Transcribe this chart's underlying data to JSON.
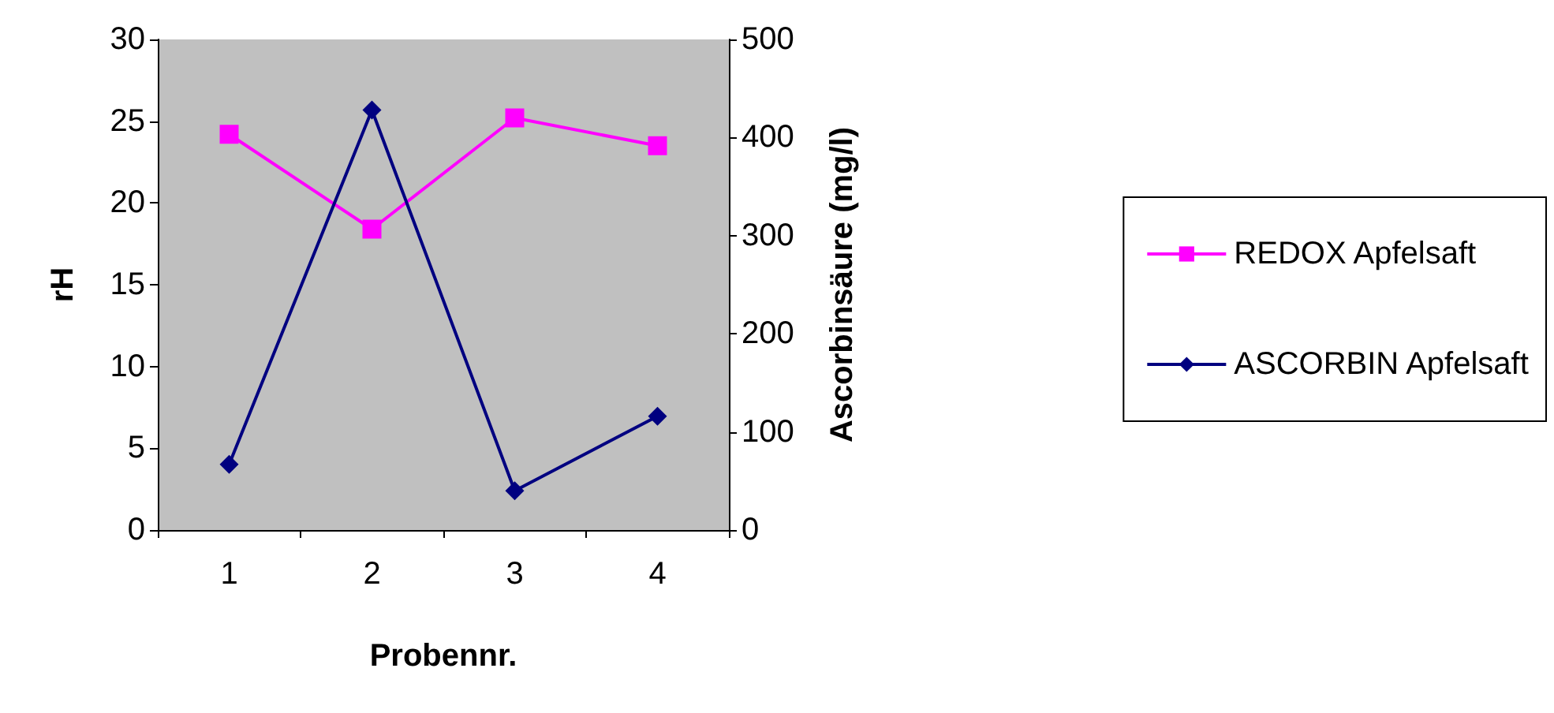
{
  "chart_data": {
    "type": "line",
    "xlabel": "Probennr.",
    "ylabel": "rH",
    "y2label": "Ascorbinsäure (mg/l)",
    "categories": [
      "1",
      "2",
      "3",
      "4"
    ],
    "series": [
      {
        "name": "REDOX Apfelsaft",
        "color": "#ff00ff",
        "marker": "square",
        "values": [
          24.2,
          18.4,
          25.2,
          23.5
        ]
      },
      {
        "name": "ASCORBIN Apfelsaft",
        "color": "#000080",
        "marker": "diamond",
        "axis": "y2",
        "values": [
          67,
          428,
          40,
          116
        ]
      }
    ],
    "ylim": [
      0,
      30
    ],
    "yticks": [
      0,
      5,
      10,
      15,
      20,
      25,
      30
    ],
    "y2lim": [
      0,
      500
    ],
    "y2ticks": [
      0,
      100,
      200,
      300,
      400,
      500
    ],
    "grid": false,
    "legend": "right"
  }
}
